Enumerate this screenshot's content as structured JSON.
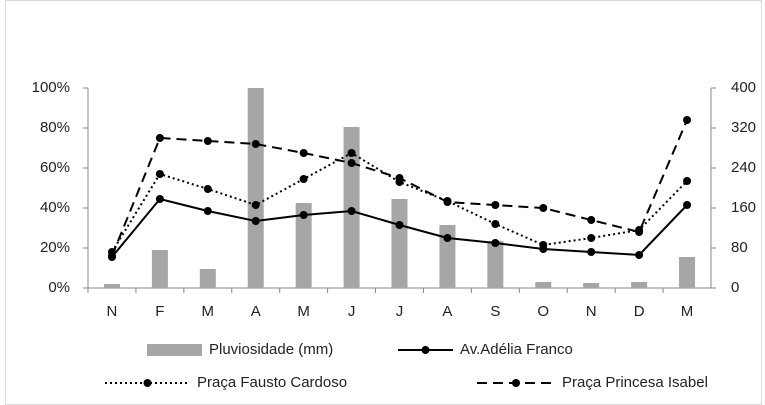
{
  "chart_data": {
    "type": "combo",
    "categories": [
      "N",
      "F",
      "M",
      "A",
      "M",
      "J",
      "J",
      "A",
      "S",
      "O",
      "N",
      "D",
      "M"
    ],
    "series": [
      {
        "name": "Pluviosidade (mm)",
        "type": "bar",
        "axis": "y2",
        "color": "#a6a6a6",
        "values": [
          8,
          76,
          38,
          400,
          170,
          322,
          178,
          126,
          94,
          12,
          10,
          12,
          62
        ]
      },
      {
        "name": "Av.Adélia Franco",
        "type": "line",
        "line_style": "solid",
        "color": "#000000",
        "values": [
          15.5,
          44.5,
          38.5,
          33.5,
          36.5,
          38.5,
          31.5,
          25,
          22.5,
          19.5,
          18,
          16.5,
          41.5
        ]
      },
      {
        "name": "Praça Fausto Cardoso",
        "type": "line",
        "line_style": "dotted",
        "color": "#000000",
        "values": [
          18,
          57,
          49.5,
          41.5,
          54.5,
          67.5,
          53,
          43.5,
          32,
          21.5,
          25,
          29,
          53.5
        ]
      },
      {
        "name": "Praça Princesa Isabel",
        "type": "line",
        "line_style": "dashed",
        "color": "#000000",
        "values": [
          16,
          75,
          73.5,
          72,
          67.5,
          62.5,
          55,
          43,
          41.5,
          40,
          34,
          28,
          84
        ]
      }
    ],
    "ylim": [
      0,
      100
    ],
    "yticks": [
      {
        "value": 0,
        "label": "0%"
      },
      {
        "value": 20,
        "label": "20%"
      },
      {
        "value": 40,
        "label": "40%"
      },
      {
        "value": 60,
        "label": "60%"
      },
      {
        "value": 80,
        "label": "80%"
      },
      {
        "value": 100,
        "label": "100%"
      }
    ],
    "y2lim": [
      0,
      400
    ],
    "y2ticks": [
      0,
      80,
      160,
      240,
      320,
      400
    ],
    "legend": "bottom"
  }
}
